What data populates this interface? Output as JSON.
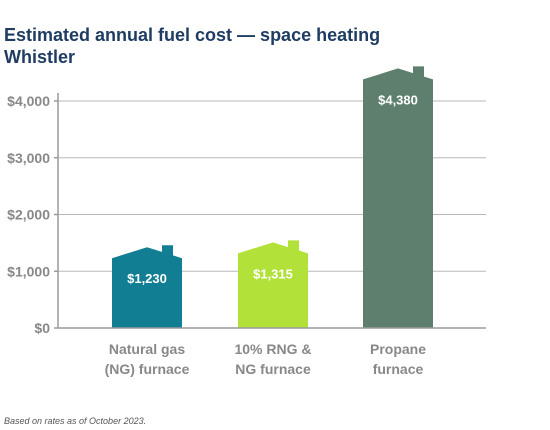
{
  "chart_data": {
    "type": "bar",
    "title": "Estimated annual fuel cost — space heating",
    "subtitle": "Whistler",
    "categories": [
      [
        "Natural gas",
        "(NG) furnace"
      ],
      [
        "10% RNG &",
        "NG furnace"
      ],
      [
        "Propane",
        "furnace"
      ]
    ],
    "values": [
      1230,
      1315,
      4380
    ],
    "data_labels": [
      "$1,230",
      "$1,315",
      "$4,380"
    ],
    "bar_colors": [
      "#127e94",
      "#b2e13a",
      "#5e7f6d"
    ],
    "ylim": [
      0,
      4000
    ],
    "yticks": [
      0,
      1000,
      2000,
      3000,
      4000
    ],
    "ytick_labels": [
      "$0",
      "$1,000",
      "$2,000",
      "$3,000",
      "$4,000"
    ],
    "grid": true,
    "legend": "none"
  },
  "footnote": "Based on rates as of October 2023."
}
